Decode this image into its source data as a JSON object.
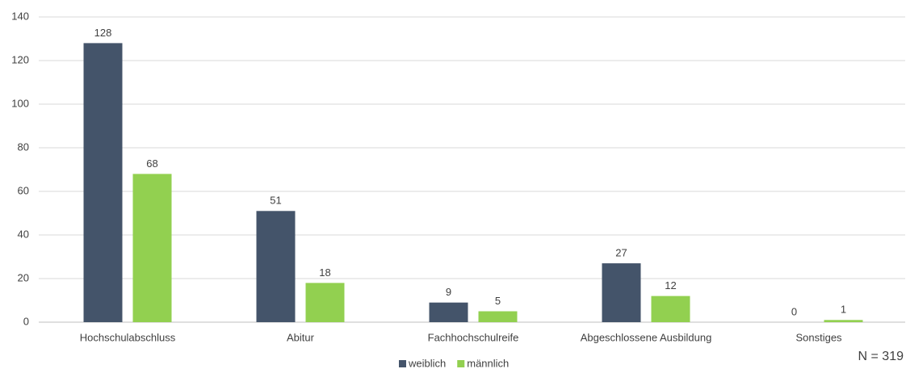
{
  "chart_data": {
    "type": "bar",
    "categories": [
      "Hochschulabschluss",
      "Abitur",
      "Fachhochschulreife",
      "Abgeschlossene Ausbildung",
      "Sonstiges"
    ],
    "series": [
      {
        "name": "weiblich",
        "color": "#44546a",
        "values": [
          128,
          51,
          9,
          27,
          0
        ]
      },
      {
        "name": "männlich",
        "color": "#92d050",
        "values": [
          68,
          18,
          5,
          12,
          1
        ]
      }
    ],
    "ylim": [
      0,
      140
    ],
    "yticks": [
      0,
      20,
      40,
      60,
      80,
      100,
      120,
      140
    ],
    "grid": true,
    "legend": "bottom",
    "annotation": "N = 319"
  }
}
